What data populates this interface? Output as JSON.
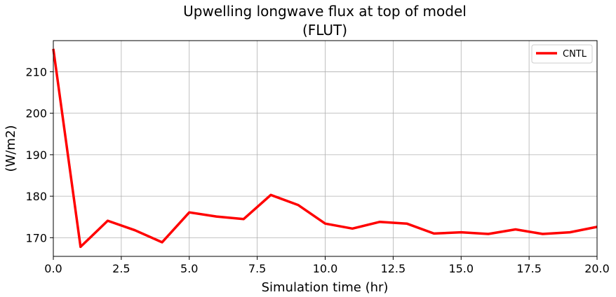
{
  "chart_data": {
    "type": "line",
    "title": "Upwelling longwave flux at top of model",
    "subtitle": "(FLUT)",
    "xlabel": "Simulation time (hr)",
    "ylabel": "(W/m2)",
    "xlim": [
      0,
      20
    ],
    "ylim": [
      165.5,
      217.5
    ],
    "x_ticks": [
      0,
      2.5,
      5,
      7.5,
      10,
      12.5,
      15,
      17.5,
      20
    ],
    "x_tick_labels": [
      "0.0",
      "2.5",
      "5.0",
      "7.5",
      "10.0",
      "12.5",
      "15.0",
      "17.5",
      "20.0"
    ],
    "y_ticks": [
      170,
      180,
      190,
      200,
      210
    ],
    "y_tick_labels": [
      "170",
      "180",
      "190",
      "200",
      "210"
    ],
    "grid": true,
    "legend_position": "top-right",
    "series": [
      {
        "name": "CNTL",
        "color": "#ff0000",
        "x": [
          0,
          1,
          2,
          3,
          4,
          5,
          6,
          7,
          8,
          9,
          10,
          11,
          12,
          13,
          14,
          15,
          16,
          17,
          18,
          19,
          20
        ],
        "values": [
          215.5,
          167.8,
          174.1,
          171.8,
          168.9,
          176.1,
          175.1,
          174.5,
          180.3,
          177.9,
          173.4,
          172.2,
          173.8,
          173.4,
          171.0,
          171.3,
          170.9,
          172.0,
          170.9,
          171.3,
          172.6
        ]
      }
    ]
  }
}
